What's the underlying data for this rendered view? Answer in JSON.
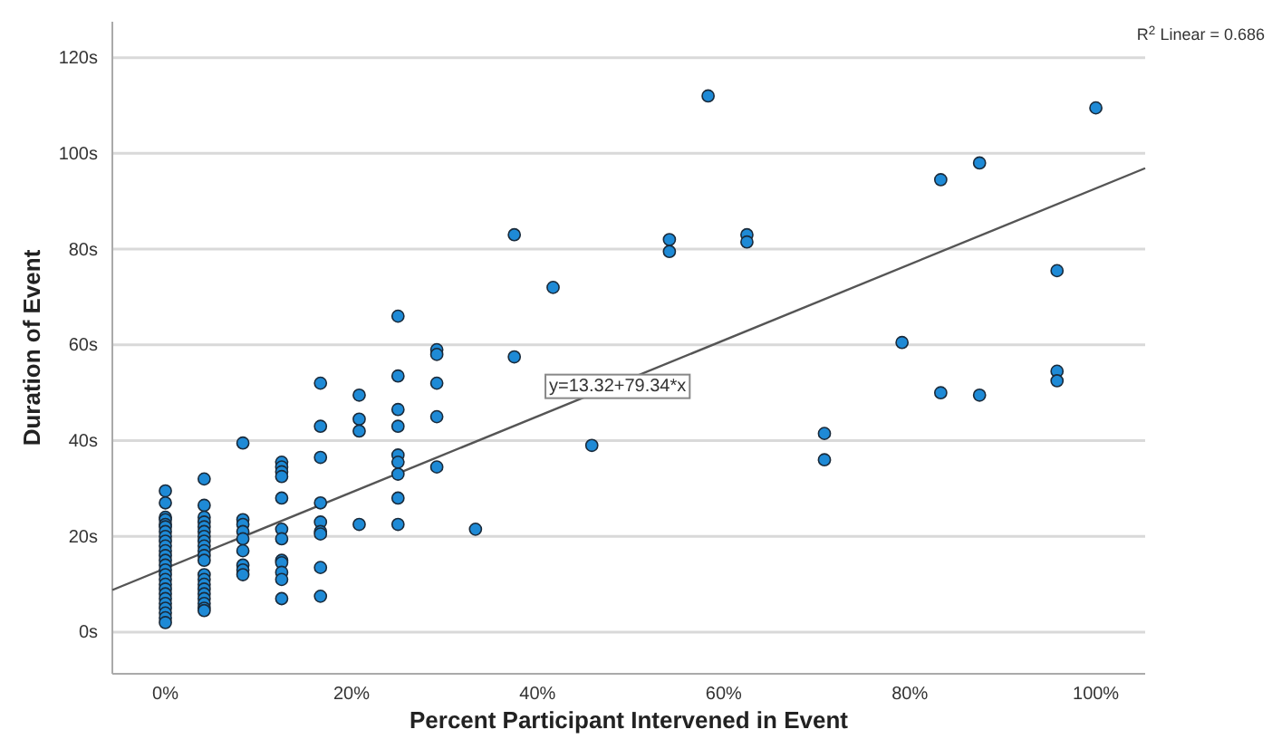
{
  "chart_data": {
    "type": "scatter",
    "xlabel": "Percent Participant Intervened in Event",
    "ylabel": "Duration of Event",
    "xlim": [
      -5.7,
      105.3
    ],
    "ylim": [
      -8.7,
      127.5
    ],
    "xticks": [
      {
        "value": 0,
        "label": "0%"
      },
      {
        "value": 20,
        "label": "20%"
      },
      {
        "value": 40,
        "label": "40%"
      },
      {
        "value": 60,
        "label": "60%"
      },
      {
        "value": 80,
        "label": "80%"
      },
      {
        "value": 100,
        "label": "100%"
      }
    ],
    "yticks": [
      {
        "value": 0,
        "label": "0s"
      },
      {
        "value": 20,
        "label": "20s"
      },
      {
        "value": 40,
        "label": "40s"
      },
      {
        "value": 60,
        "label": "60s"
      },
      {
        "value": 80,
        "label": "80s"
      },
      {
        "value": 100,
        "label": "100s"
      },
      {
        "value": 120,
        "label": "120s"
      }
    ],
    "grid": "y",
    "series": [
      {
        "color": "#1e8ad6",
        "marker": "circle",
        "x": [
          0,
          0,
          0,
          0,
          0,
          0,
          0,
          0,
          0,
          0,
          0,
          0,
          0,
          0,
          0,
          0,
          0,
          0,
          0,
          0,
          0,
          0,
          0,
          0,
          0,
          0,
          4.17,
          4.17,
          4.17,
          4.17,
          4.17,
          4.17,
          4.17,
          4.17,
          4.17,
          4.17,
          4.17,
          4.17,
          4.17,
          4.17,
          4.17,
          4.17,
          4.17,
          4.17,
          4.17,
          4.17,
          4.17,
          8.33,
          8.33,
          8.33,
          8.33,
          8.33,
          8.33,
          8.33,
          8.33,
          8.33,
          12.5,
          12.5,
          12.5,
          12.5,
          12.5,
          12.5,
          12.5,
          12.5,
          12.5,
          12.5,
          12.5,
          12.5,
          16.67,
          16.67,
          16.67,
          16.67,
          16.67,
          16.67,
          16.67,
          16.67,
          16.67,
          20.83,
          20.83,
          20.83,
          20.83,
          25,
          25,
          25,
          25,
          25,
          25,
          25,
          25,
          25,
          29.17,
          29.17,
          29.17,
          29.17,
          29.17,
          33.33,
          37.5,
          37.5,
          41.67,
          45.83,
          54.17,
          54.17,
          58.33,
          62.5,
          62.5,
          70.83,
          70.83,
          79.17,
          83.33,
          83.33,
          87.5,
          87.5,
          95.83,
          95.83,
          95.83,
          100
        ],
        "values": [
          29.5,
          27,
          24,
          23.5,
          22.5,
          22,
          21,
          20,
          19,
          18,
          17,
          16,
          15,
          14,
          13,
          12,
          11,
          10,
          9,
          8,
          7,
          6,
          5,
          4,
          3,
          2,
          32,
          26.5,
          24,
          23,
          22,
          21,
          20,
          19,
          18,
          17,
          16,
          15,
          12,
          11,
          10,
          9,
          8,
          7,
          6,
          5,
          4.5,
          39.5,
          23.5,
          22.5,
          21,
          19.5,
          17,
          14,
          13,
          12,
          35.5,
          34.5,
          33.5,
          32.5,
          28,
          21.5,
          19.5,
          15,
          14.5,
          12.5,
          11,
          7,
          52,
          43,
          36.5,
          27,
          23,
          21,
          20.5,
          13.5,
          7.5,
          49.5,
          44.5,
          42,
          22.5,
          66,
          53.5,
          46.5,
          43,
          37,
          35.5,
          33,
          28,
          22.5,
          59,
          58,
          52,
          45,
          34.5,
          21.5,
          83,
          57.5,
          72,
          39,
          82,
          79.5,
          112,
          83,
          81.5,
          41.5,
          36,
          60.5,
          94.5,
          50,
          98,
          49.5,
          75.5,
          54.5,
          52.5,
          109.5
        ]
      },
      {
        "type": "line",
        "color": "#555555",
        "x": [
          -5.7,
          105.3
        ],
        "values": [
          8.8,
          96.9
        ]
      }
    ],
    "annotations": [
      {
        "text": "y=13.32+79.34*x",
        "x": 48.6,
        "y": 51.9
      },
      "R$^{2}$ Linear = 0.686"
    ]
  }
}
